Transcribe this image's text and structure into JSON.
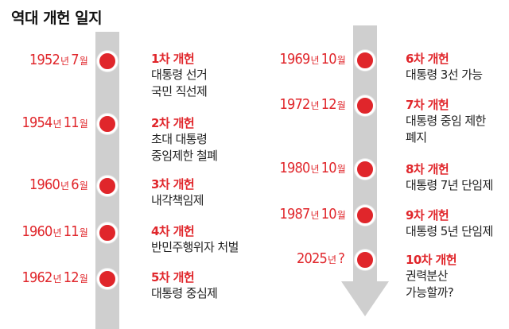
{
  "title": "역대 개헌 일지",
  "colors": {
    "accent": "#e0262b",
    "track": "#cfcfcf",
    "text": "#222222"
  },
  "events": [
    {
      "year": "1952",
      "year_unit": "년",
      "month": "7",
      "month_unit": "월",
      "amend": "1차 개헌",
      "lines": [
        "대통령 선거",
        "국민 직선제"
      ]
    },
    {
      "year": "1954",
      "year_unit": "년",
      "month": "11",
      "month_unit": "월",
      "amend": "2차 개헌",
      "lines": [
        "초대 대통령",
        "중임제한 철폐"
      ]
    },
    {
      "year": "1960",
      "year_unit": "년",
      "month": "6",
      "month_unit": "월",
      "amend": "3차 개헌",
      "lines": [
        "내각책임제"
      ]
    },
    {
      "year": "1960",
      "year_unit": "년",
      "month": "11",
      "month_unit": "월",
      "amend": "4차 개헌",
      "lines": [
        "반민주행위자 처벌"
      ]
    },
    {
      "year": "1962",
      "year_unit": "년",
      "month": "12",
      "month_unit": "월",
      "amend": "5차 개헌",
      "lines": [
        "대통령 중심제"
      ]
    },
    {
      "year": "1969",
      "year_unit": "년",
      "month": "10",
      "month_unit": "월",
      "amend": "6차 개헌",
      "lines": [
        "대통령 3선 가능"
      ]
    },
    {
      "year": "1972",
      "year_unit": "년",
      "month": "12",
      "month_unit": "월",
      "amend": "7차 개헌",
      "lines": [
        "대통령 중임 제한",
        "폐지"
      ]
    },
    {
      "year": "1980",
      "year_unit": "년",
      "month": "10",
      "month_unit": "월",
      "amend": "8차 개헌",
      "lines": [
        "대통령 7년 단임제"
      ]
    },
    {
      "year": "1987",
      "year_unit": "년",
      "month": "10",
      "month_unit": "월",
      "amend": "9차 개헌",
      "lines": [
        "대통령 5년 단임제"
      ]
    },
    {
      "year": "2025",
      "year_unit": "년",
      "month": "?",
      "month_unit": "",
      "amend": "10차 개헌",
      "lines": [
        "권력분산",
        "가능할까?"
      ]
    }
  ]
}
